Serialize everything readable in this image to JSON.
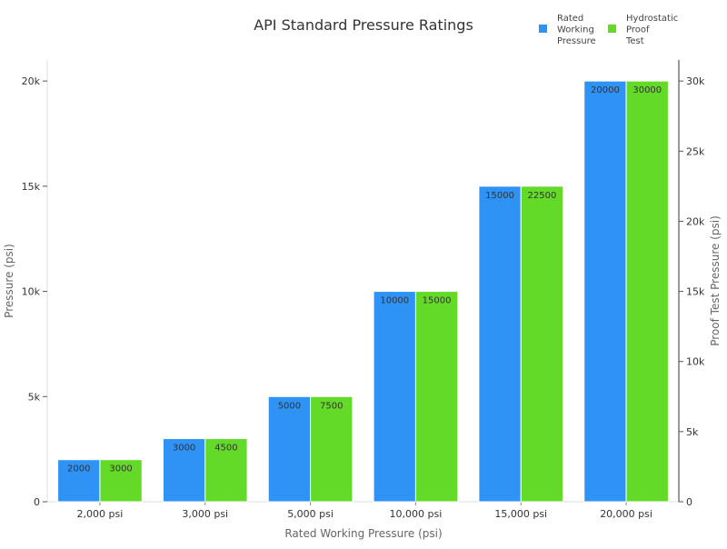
{
  "chart_data": {
    "type": "bar",
    "title": "API Standard Pressure Ratings",
    "xlabel": "Rated Working Pressure (psi)",
    "ylabel": "Pressure (psi)",
    "y2label": "Proof Test Pressure (psi)",
    "categories": [
      "2,000 psi",
      "3,000 psi",
      "5,000 psi",
      "10,000 psi",
      "15,000 psi",
      "20,000 psi"
    ],
    "series": [
      {
        "name": "Rated Working Pressure",
        "legend_lines": [
          "Rated",
          "Working",
          "Pressure"
        ],
        "axis": "left",
        "color": "#2e93f5",
        "values": [
          2000,
          3000,
          5000,
          10000,
          15000,
          20000
        ]
      },
      {
        "name": "Hydrostatic Proof Test",
        "legend_lines": [
          "Hydrostatic",
          "Proof",
          "Test"
        ],
        "axis": "right",
        "color": "#63d928",
        "values": [
          3000,
          4500,
          7500,
          15000,
          22500,
          30000
        ]
      }
    ],
    "ylim": [
      0,
      21000
    ],
    "y2lim": [
      0,
      31500
    ],
    "yticks": [
      0,
      5000,
      10000,
      15000,
      20000
    ],
    "ytick_labels": [
      "0",
      "5k",
      "10k",
      "15k",
      "20k"
    ],
    "y2ticks": [
      0,
      5000,
      10000,
      15000,
      20000,
      25000,
      30000
    ],
    "y2tick_labels": [
      "0",
      "5k",
      "10k",
      "15k",
      "20k",
      "25k",
      "30k"
    ],
    "grid": false,
    "legend_position": "top-right"
  }
}
